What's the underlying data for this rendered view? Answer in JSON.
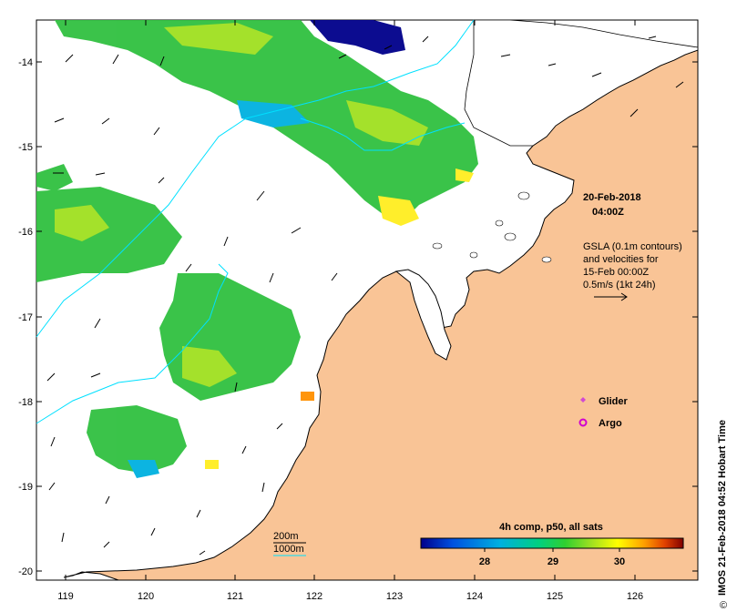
{
  "map": {
    "lat_labels": [
      "-14",
      "-15",
      "-16",
      "-17",
      "-18",
      "-19",
      "-20"
    ],
    "lon_labels": [
      "119",
      "120",
      "121",
      "122",
      "123",
      "124",
      "125",
      "126"
    ],
    "land_color": "#f9c496",
    "sea_color": "#ffffff",
    "contour_color": "#00e0ff"
  },
  "annotations": {
    "date": "20-Feb-2018",
    "time": "04:00Z",
    "gsla_line1": "GSLA (0.1m contours)",
    "gsla_line2": "and velocities for",
    "gsla_line3": "15-Feb 00:00Z",
    "gsla_line4": "0.5m/s (1kt 24h)"
  },
  "legend": {
    "glider": "Glider",
    "argo": "Argo",
    "glider_color": "#d24ad2",
    "argo_color": "#d000d0"
  },
  "isobaths": {
    "label_200": "200m",
    "label_1000": "1000m"
  },
  "colorbar": {
    "title": "4h comp, p50, all sats",
    "ticks": [
      "28",
      "29",
      "30"
    ],
    "colors": [
      "#00008b",
      "#0050e0",
      "#00b0e0",
      "#00d080",
      "#30d030",
      "#a0e020",
      "#ffff00",
      "#ffa000",
      "#e04000",
      "#800000"
    ]
  },
  "footer": {
    "credit": "IMOS 21-Feb-2018 04:52 Hobart Time",
    "copyright": "©"
  }
}
